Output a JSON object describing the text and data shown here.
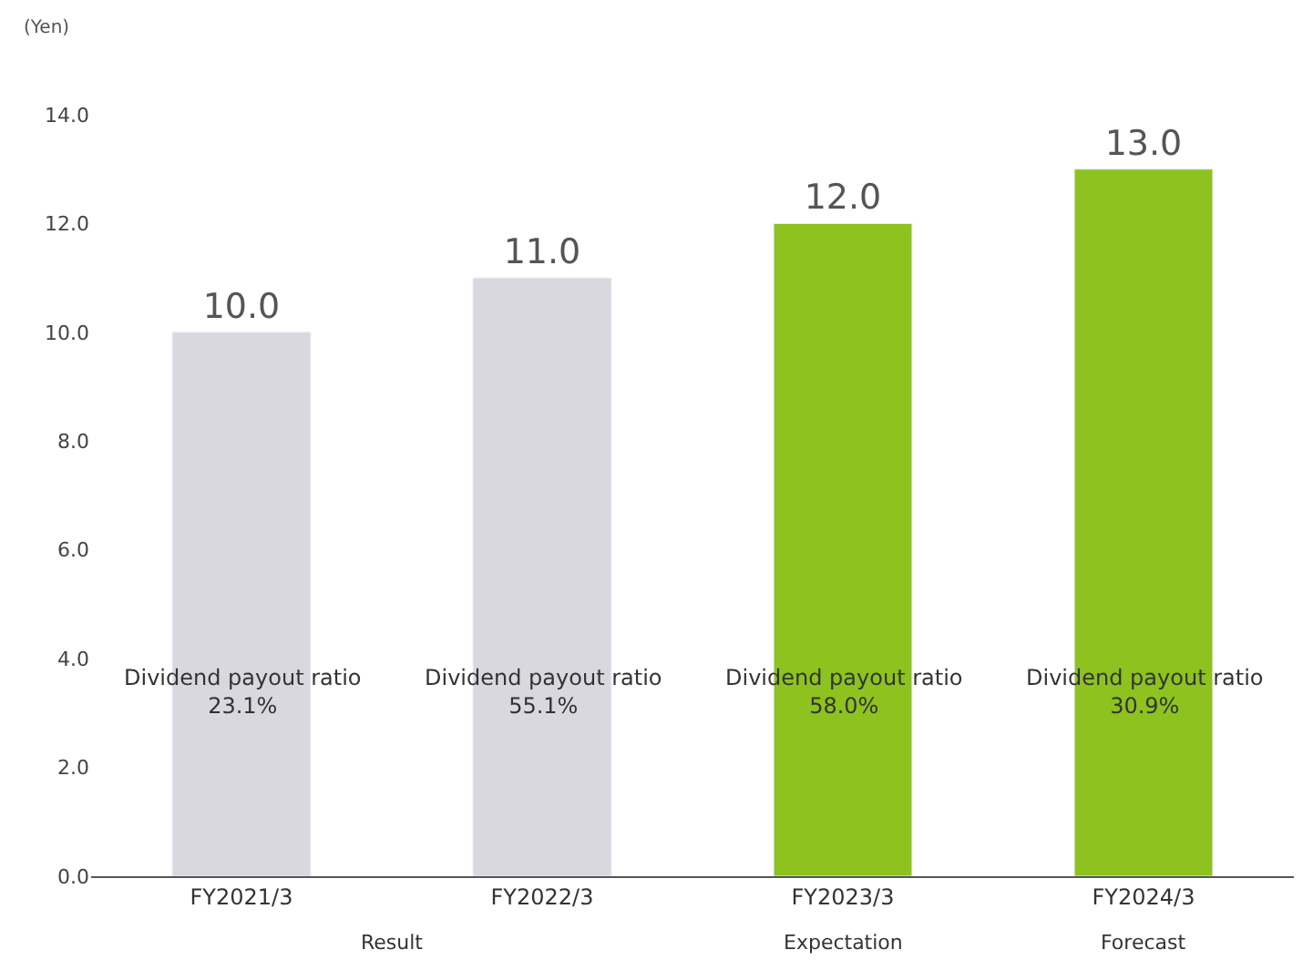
{
  "chart_data": {
    "type": "bar",
    "ylabel": "(Yen)",
    "categories": [
      "FY2021/3",
      "FY2022/3",
      "FY2023/3",
      "FY2024/3"
    ],
    "values": [
      10.0,
      11.0,
      12.0,
      13.0
    ],
    "value_labels": [
      "10.0",
      "11.0",
      "12.0",
      "13.0"
    ],
    "colors": [
      "#d9d8de",
      "#d9d8de",
      "#8dc21f",
      "#8dc21f"
    ],
    "ylim": [
      0,
      14
    ],
    "yticks": [
      {
        "value": 0,
        "label": "0.0"
      },
      {
        "value": 2,
        "label": "2.0"
      },
      {
        "value": 4,
        "label": "4.0"
      },
      {
        "value": 6,
        "label": "6.0"
      },
      {
        "value": 8,
        "label": "8.0"
      },
      {
        "value": 10,
        "label": "10.0"
      },
      {
        "value": 12,
        "label": "12.0"
      },
      {
        "value": 14,
        "label": "14.0"
      }
    ],
    "annotations": [
      "Dividend payout ratio\n23.1%",
      "Dividend payout ratio\n55.1%",
      "Dividend payout ratio\n58.0%",
      "Dividend payout ratio\n30.9%",
      "Result",
      "Expectation",
      "Forecast"
    ]
  }
}
